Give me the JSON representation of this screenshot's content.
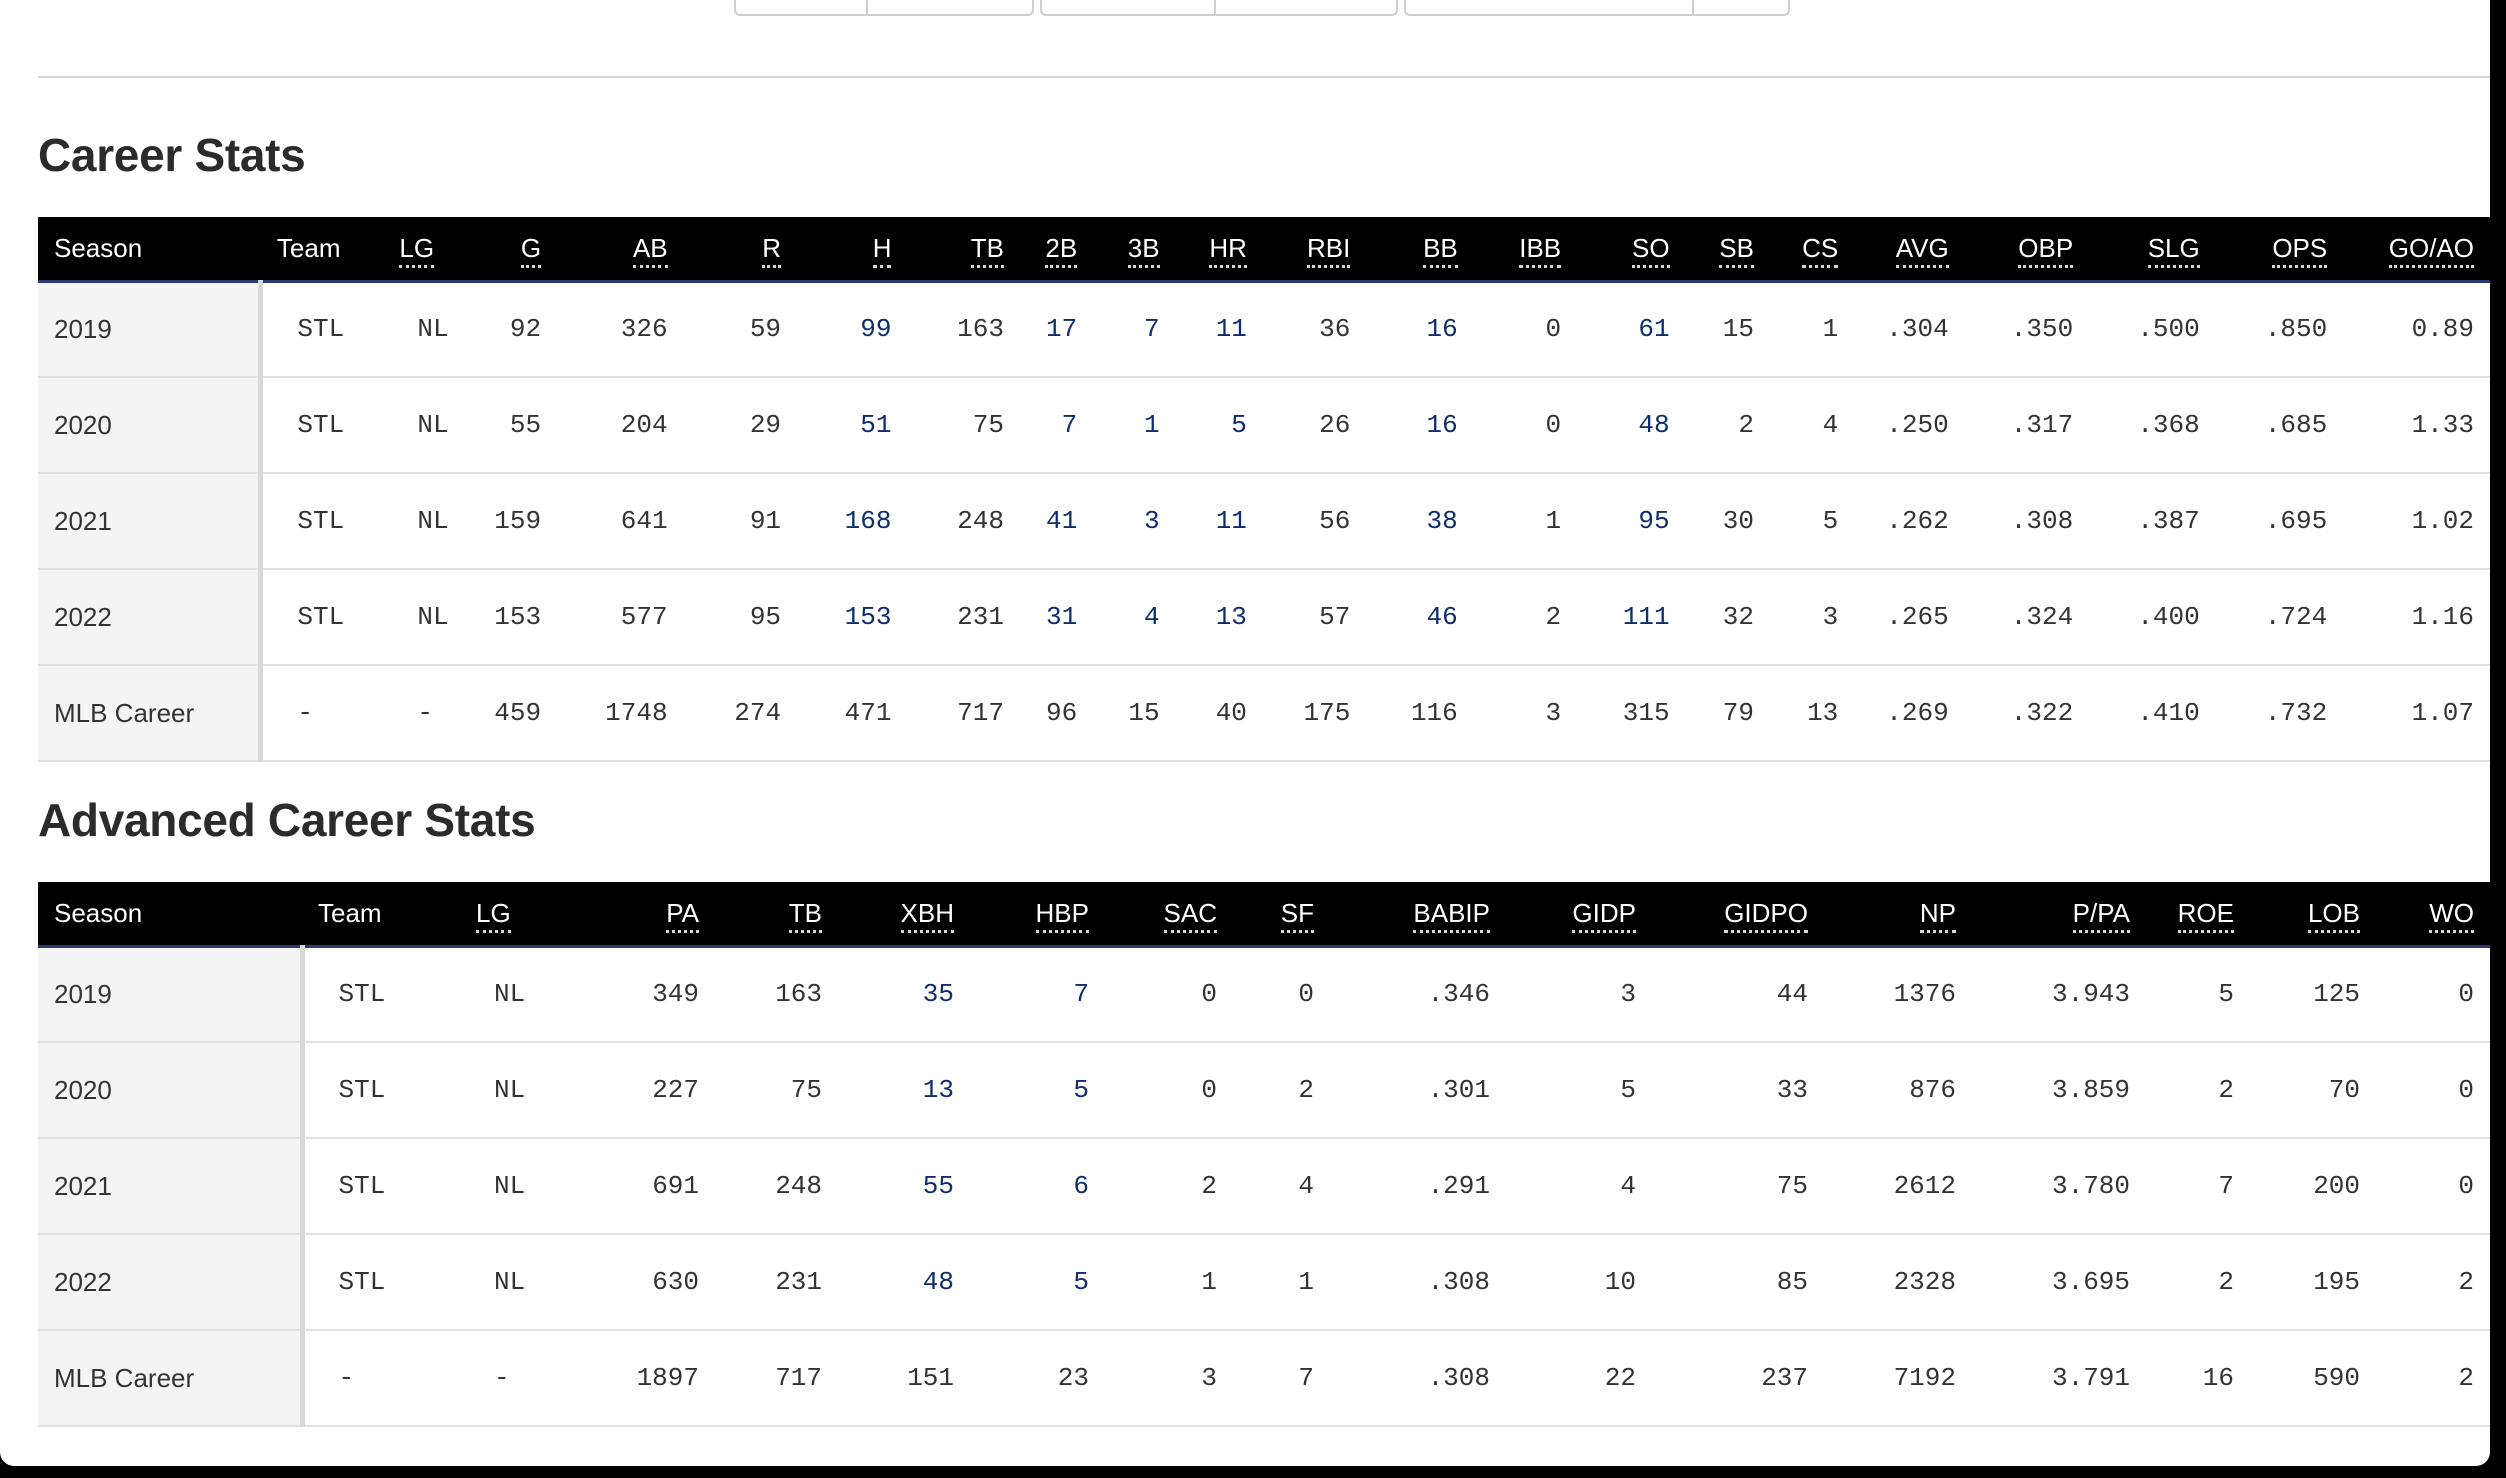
{
  "career": {
    "title": "Career Stats",
    "columns": [
      "Season",
      "Team",
      "LG",
      "G",
      "AB",
      "R",
      "H",
      "TB",
      "2B",
      "3B",
      "HR",
      "RBI",
      "BB",
      "IBB",
      "SO",
      "SB",
      "CS",
      "AVG",
      "OBP",
      "SLG",
      "OPS",
      "GO/AO"
    ],
    "rows": [
      [
        "2019",
        "STL",
        "NL",
        "92",
        "326",
        "59",
        "99",
        "163",
        "17",
        "7",
        "11",
        "36",
        "16",
        "0",
        "61",
        "15",
        "1",
        ".304",
        ".350",
        ".500",
        ".850",
        "0.89"
      ],
      [
        "2020",
        "STL",
        "NL",
        "55",
        "204",
        "29",
        "51",
        "75",
        "7",
        "1",
        "5",
        "26",
        "16",
        "0",
        "48",
        "2",
        "4",
        ".250",
        ".317",
        ".368",
        ".685",
        "1.33"
      ],
      [
        "2021",
        "STL",
        "NL",
        "159",
        "641",
        "91",
        "168",
        "248",
        "41",
        "3",
        "11",
        "56",
        "38",
        "1",
        "95",
        "30",
        "5",
        ".262",
        ".308",
        ".387",
        ".695",
        "1.02"
      ],
      [
        "2022",
        "STL",
        "NL",
        "153",
        "577",
        "95",
        "153",
        "231",
        "31",
        "4",
        "13",
        "57",
        "46",
        "2",
        "111",
        "32",
        "3",
        ".265",
        ".324",
        ".400",
        ".724",
        "1.16"
      ],
      [
        "MLB Career",
        "-",
        "-",
        "459",
        "1748",
        "274",
        "471",
        "717",
        "96",
        "15",
        "40",
        "175",
        "116",
        "3",
        "315",
        "79",
        "13",
        ".269",
        ".322",
        ".410",
        ".732",
        "1.07"
      ]
    ]
  },
  "advanced": {
    "title": "Advanced Career Stats",
    "columns": [
      "Season",
      "Team",
      "LG",
      "PA",
      "TB",
      "XBH",
      "HBP",
      "SAC",
      "SF",
      "BABIP",
      "GIDP",
      "GIDPO",
      "NP",
      "P/PA",
      "ROE",
      "LOB",
      "WO"
    ],
    "rows": [
      [
        "2019",
        "STL",
        "NL",
        "349",
        "163",
        "35",
        "7",
        "0",
        "0",
        ".346",
        "3",
        "44",
        "1376",
        "3.943",
        "5",
        "125",
        "0"
      ],
      [
        "2020",
        "STL",
        "NL",
        "227",
        "75",
        "13",
        "5",
        "0",
        "2",
        ".301",
        "5",
        "33",
        "876",
        "3.859",
        "2",
        "70",
        "0"
      ],
      [
        "2021",
        "STL",
        "NL",
        "691",
        "248",
        "55",
        "6",
        "2",
        "4",
        ".291",
        "4",
        "75",
        "2612",
        "3.780",
        "7",
        "200",
        "0"
      ],
      [
        "2022",
        "STL",
        "NL",
        "630",
        "231",
        "48",
        "5",
        "1",
        "1",
        ".308",
        "10",
        "85",
        "2328",
        "3.695",
        "2",
        "195",
        "2"
      ],
      [
        "MLB Career",
        "-",
        "-",
        "1897",
        "717",
        "151",
        "23",
        "3",
        "7",
        ".308",
        "22",
        "237",
        "7192",
        "3.791",
        "16",
        "590",
        "2"
      ]
    ]
  }
}
